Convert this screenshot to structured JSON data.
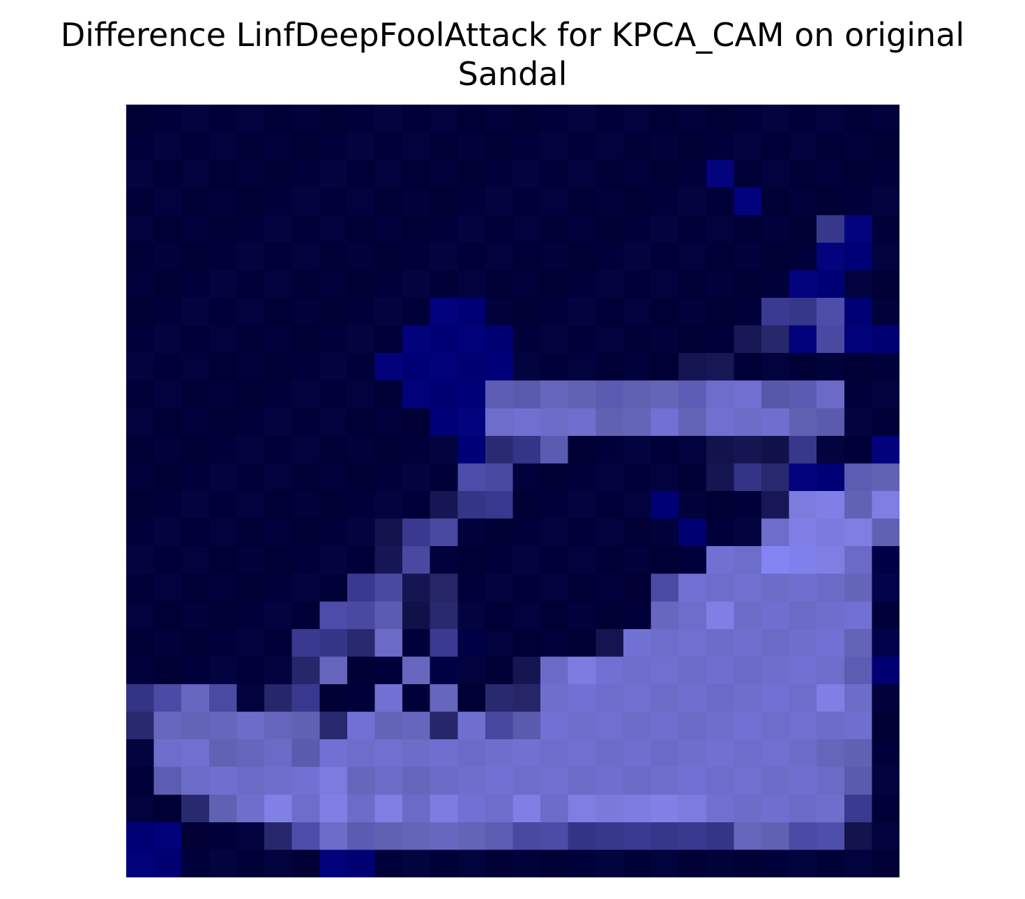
{
  "title": {
    "line1": "Difference LinfDeepFoolAttack for KPCA_CAM on original",
    "line2": "Sandal"
  },
  "image": {
    "rows": 28,
    "cols": 28,
    "colors": {
      "background": "#ffffff",
      "base": "#000038",
      "deep_blue": "#000080",
      "light": "#7878f0"
    }
  }
}
